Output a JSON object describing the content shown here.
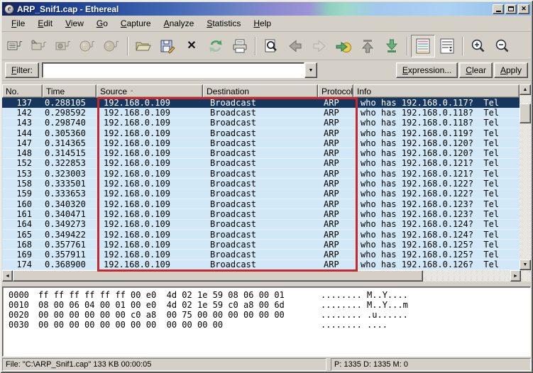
{
  "window": {
    "title": "ARP_Snif1.cap - Ethereal"
  },
  "menu": {
    "items": [
      {
        "label": "File"
      },
      {
        "label": "Edit"
      },
      {
        "label": "View"
      },
      {
        "label": "Go"
      },
      {
        "label": "Capture"
      },
      {
        "label": "Analyze"
      },
      {
        "label": "Statistics"
      },
      {
        "label": "Help"
      }
    ]
  },
  "toolbar": {
    "icons": [
      "capture-interfaces",
      "capture-options",
      "capture-start",
      "capture-stop",
      "capture-restart",
      "open-file",
      "save-file",
      "close-file",
      "reload",
      "print",
      "find-packet",
      "go-back",
      "go-forward",
      "goto-packet",
      "goto-top",
      "goto-bottom",
      "colorize",
      "autoscroll",
      "zoom-in",
      "zoom-out"
    ]
  },
  "filter": {
    "label": "Filter:",
    "value": "",
    "expression_button": "Expression...",
    "clear_button": "Clear",
    "apply_button": "Apply"
  },
  "packet_list": {
    "columns": [
      {
        "label": "No."
      },
      {
        "label": "Time"
      },
      {
        "label": "Source",
        "sort_indicator": "-"
      },
      {
        "label": "Destination"
      },
      {
        "label": "Protocol"
      },
      {
        "label": "Info"
      }
    ],
    "rows": [
      {
        "selected": true,
        "no": "137",
        "time": "0.288105",
        "source": "192.168.0.109",
        "destination": "Broadcast",
        "protocol": "ARP",
        "info": "who has 192.168.0.117?  Tel"
      },
      {
        "no": "142",
        "time": "0.298592",
        "source": "192.168.0.109",
        "destination": "Broadcast",
        "protocol": "ARP",
        "info": "who has 192.168.0.118?  Tel"
      },
      {
        "no": "143",
        "time": "0.298740",
        "source": "192.168.0.109",
        "destination": "Broadcast",
        "protocol": "ARP",
        "info": "who has 192.168.0.118?  Tel"
      },
      {
        "no": "144",
        "time": "0.305360",
        "source": "192.168.0.109",
        "destination": "Broadcast",
        "protocol": "ARP",
        "info": "who has 192.168.0.119?  Tel"
      },
      {
        "no": "147",
        "time": "0.314365",
        "source": "192.168.0.109",
        "destination": "Broadcast",
        "protocol": "ARP",
        "info": "who has 192.168.0.120?  Tel"
      },
      {
        "no": "148",
        "time": "0.314515",
        "source": "192.168.0.109",
        "destination": "Broadcast",
        "protocol": "ARP",
        "info": "who has 192.168.0.120?  Tel"
      },
      {
        "no": "152",
        "time": "0.322853",
        "source": "192.168.0.109",
        "destination": "Broadcast",
        "protocol": "ARP",
        "info": "who has 192.168.0.121?  Tel"
      },
      {
        "no": "153",
        "time": "0.323003",
        "source": "192.168.0.109",
        "destination": "Broadcast",
        "protocol": "ARP",
        "info": "who has 192.168.0.121?  Tel"
      },
      {
        "no": "158",
        "time": "0.333501",
        "source": "192.168.0.109",
        "destination": "Broadcast",
        "protocol": "ARP",
        "info": "who has 192.168.0.122?  Tel"
      },
      {
        "no": "159",
        "time": "0.333653",
        "source": "192.168.0.109",
        "destination": "Broadcast",
        "protocol": "ARP",
        "info": "who has 192.168.0.122?  Tel"
      },
      {
        "no": "160",
        "time": "0.340320",
        "source": "192.168.0.109",
        "destination": "Broadcast",
        "protocol": "ARP",
        "info": "who has 192.168.0.123?  Tel"
      },
      {
        "no": "161",
        "time": "0.340471",
        "source": "192.168.0.109",
        "destination": "Broadcast",
        "protocol": "ARP",
        "info": "who has 192.168.0.123?  Tel"
      },
      {
        "no": "164",
        "time": "0.349273",
        "source": "192.168.0.109",
        "destination": "Broadcast",
        "protocol": "ARP",
        "info": "who has 192.168.0.124?  Tel"
      },
      {
        "no": "165",
        "time": "0.349422",
        "source": "192.168.0.109",
        "destination": "Broadcast",
        "protocol": "ARP",
        "info": "who has 192.168.0.124?  Tel"
      },
      {
        "no": "168",
        "time": "0.357761",
        "source": "192.168.0.109",
        "destination": "Broadcast",
        "protocol": "ARP",
        "info": "who has 192.168.0.125?  Tel"
      },
      {
        "no": "169",
        "time": "0.357911",
        "source": "192.168.0.109",
        "destination": "Broadcast",
        "protocol": "ARP",
        "info": "who has 192.168.0.125?  Tel"
      },
      {
        "no": "174",
        "time": "0.368900",
        "source": "192.168.0.109",
        "destination": "Broadcast",
        "protocol": "ARP",
        "info": "who has 192.168.0.126?  Tel"
      }
    ]
  },
  "hex_view": {
    "lines": [
      {
        "offset": "0000",
        "hex": "ff ff ff ff ff ff 00 e0  4d 02 1e 59 08 06 00 01",
        "ascii": "........ M..Y...."
      },
      {
        "offset": "0010",
        "hex": "08 00 06 04 00 01 00 e0  4d 02 1e 59 c0 a8 00 6d",
        "ascii": "........ M..Y...m"
      },
      {
        "offset": "0020",
        "hex": "00 00 00 00 00 00 c0 a8  00 75 00 00 00 00 00 00",
        "ascii": "........ .u......"
      },
      {
        "offset": "0030",
        "hex": "00 00 00 00 00 00 00 00  00 00 00 00",
        "ascii": "........ ...."
      }
    ]
  },
  "status_bar": {
    "left": "File: \"C:\\ARP_Snif1.cap\" 133 KB 00:00:05",
    "right": "P: 1335 D: 1335 M: 0"
  },
  "colors": {
    "row_bg": "#d3e8f6",
    "selected_row_bg": "#17365e",
    "annotation_box": "#c8282d",
    "chrome": "#d4d0c8"
  }
}
